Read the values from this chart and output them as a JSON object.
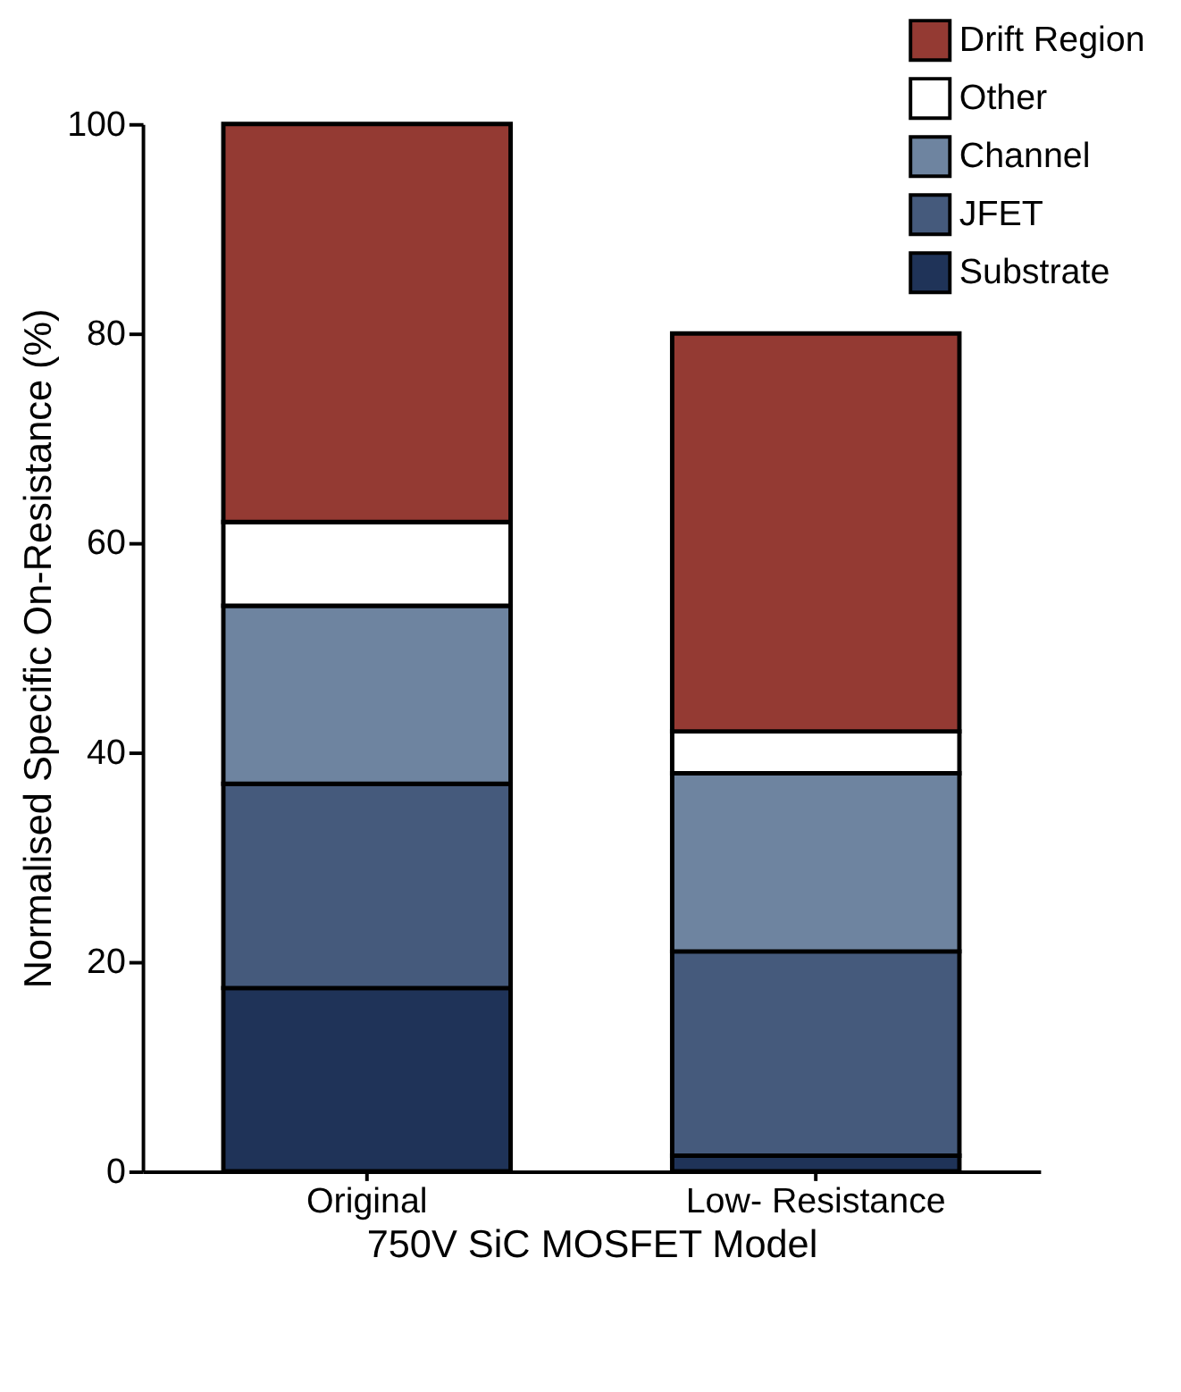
{
  "chart_data": {
    "type": "bar",
    "stacked": true,
    "xlabel": "750V SiC MOSFET Model",
    "ylabel": "Normalised Specific On-Resistance (%)",
    "categories": [
      "Original",
      "Low- Resistance"
    ],
    "series": [
      {
        "name": "Substrate",
        "color": "#1f3358",
        "values": [
          17.5,
          1.5
        ]
      },
      {
        "name": "JFET",
        "color": "#455a7c",
        "values": [
          19.5,
          19.5
        ]
      },
      {
        "name": "Channel",
        "color": "#6e84a0",
        "values": [
          17,
          17
        ]
      },
      {
        "name": "Other",
        "color": "#ffffff",
        "values": [
          8,
          4
        ]
      },
      {
        "name": "Drift Region",
        "color": "#943a33",
        "values": [
          38,
          38
        ]
      }
    ],
    "ylim": [
      0,
      100
    ],
    "yticks": [
      0,
      20,
      40,
      60,
      80,
      100
    ],
    "grid": false,
    "legend": "top right"
  }
}
